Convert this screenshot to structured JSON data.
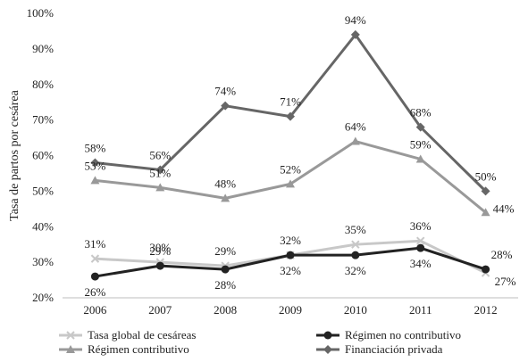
{
  "chart_data": {
    "type": "line",
    "ylabel": "Tasa de partos por cesárea",
    "xlabel": "",
    "categories": [
      "2006",
      "2007",
      "2008",
      "2009",
      "2010",
      "2011",
      "2012"
    ],
    "ylim": [
      20,
      100
    ],
    "yticks": [
      "20%",
      "30%",
      "40%",
      "50%",
      "60%",
      "70%",
      "80%",
      "90%",
      "100%"
    ],
    "grid": false,
    "legend_position": "bottom",
    "series": [
      {
        "name": "Tasa global de cesáreas",
        "values": [
          31,
          30,
          29,
          32,
          35,
          36,
          27
        ],
        "color": "#c8c8c8",
        "marker": "x",
        "labels": [
          "31%",
          "30%",
          "29%",
          "32%",
          "35%",
          "36%",
          "27%"
        ]
      },
      {
        "name": "Régimen contributivo",
        "values": [
          53,
          51,
          48,
          52,
          64,
          59,
          44
        ],
        "color": "#999999",
        "marker": "triangle",
        "labels": [
          "53%",
          "51%",
          "48%",
          "52%",
          "64%",
          "59%",
          "44%"
        ]
      },
      {
        "name": "Régimen no contributivo",
        "values": [
          26,
          29,
          28,
          32,
          32,
          34,
          28
        ],
        "color": "#222222",
        "marker": "circle",
        "labels": [
          "26%",
          "29%",
          "28%",
          "32%",
          "32%",
          "34%",
          "28%"
        ]
      },
      {
        "name": "Financiación privada",
        "values": [
          58,
          56,
          74,
          71,
          94,
          68,
          50
        ],
        "color": "#666666",
        "marker": "diamond",
        "labels": [
          "58%",
          "56%",
          "74%",
          "71%",
          "94%",
          "68%",
          "50%"
        ]
      }
    ]
  }
}
